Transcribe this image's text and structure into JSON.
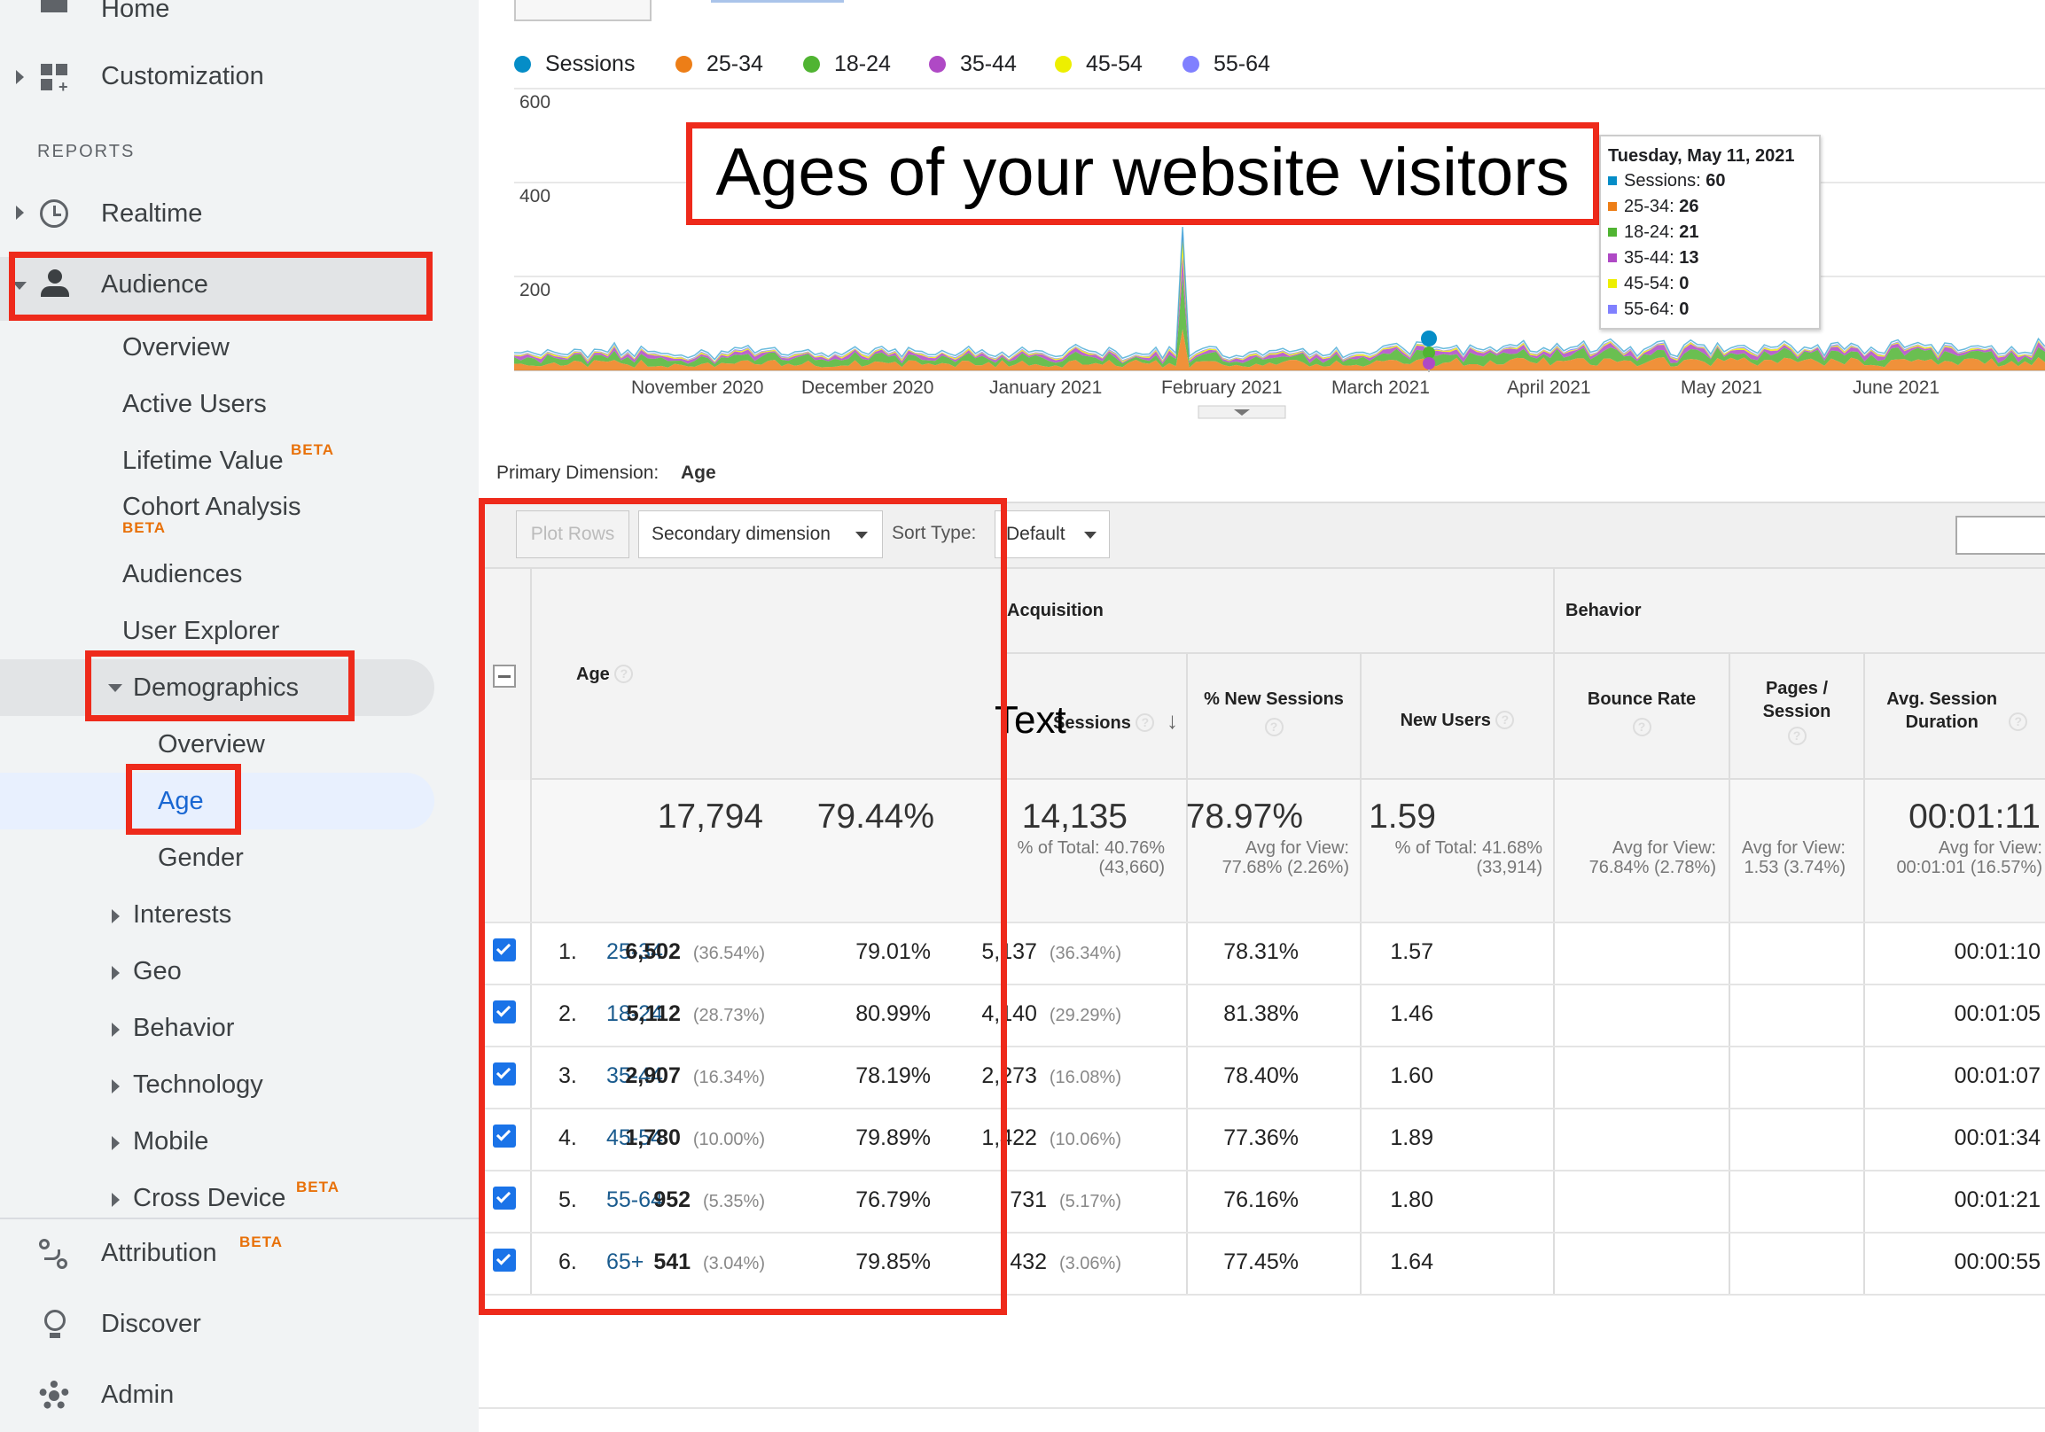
{
  "sidebar": {
    "home_label": "Home",
    "customization_label": "Customization",
    "reports_header": "REPORTS",
    "realtime_label": "Realtime",
    "audience_label": "Audience",
    "audience_items": [
      "Overview",
      "Active Users",
      "Lifetime Value",
      "Cohort Analysis",
      "Audiences",
      "User Explorer"
    ],
    "beta_label": "BETA",
    "demographics_label": "Demographics",
    "demographics_items": [
      "Overview",
      "Age",
      "Gender"
    ],
    "collapsed_items": [
      "Interests",
      "Geo",
      "Behavior",
      "Technology",
      "Mobile",
      "Cross Device"
    ],
    "bottom_items": [
      "Attribution",
      "Discover",
      "Admin"
    ]
  },
  "chart": {
    "legend": [
      "Sessions",
      "25-34",
      "18-24",
      "35-44",
      "45-54",
      "55-64"
    ],
    "legend_colors": [
      "#058dc7",
      "#ed7e17",
      "#50b432",
      "#af49c5",
      "#edef00",
      "#8080ff"
    ],
    "annotation": "Ages of your website visitors",
    "tooltip": {
      "title": "Tuesday, May 11, 2021",
      "rows": [
        {
          "label": "Sessions:",
          "value": "60"
        },
        {
          "label": "25-34:",
          "value": "26"
        },
        {
          "label": "18-24:",
          "value": "21"
        },
        {
          "label": "35-44:",
          "value": "13"
        },
        {
          "label": "45-54:",
          "value": "0"
        },
        {
          "label": "55-64:",
          "value": "0"
        }
      ]
    }
  },
  "chart_data": {
    "type": "area",
    "x_labels": [
      "November 2020",
      "December 2020",
      "January 2021",
      "February 2021",
      "March 2021",
      "April 2021",
      "May 2021",
      "June 2021"
    ],
    "y_ticks": [
      "600",
      "400",
      "200"
    ],
    "ylim": [
      0,
      600
    ]
  },
  "toolbar": {
    "primary_dimension_label": "Primary Dimension:",
    "primary_dimension_value": "Age",
    "plot_rows": "Plot Rows",
    "secondary_dimension": "Secondary dimension",
    "sort_type_label": "Sort Type:",
    "sort_type_value": "Default"
  },
  "table": {
    "group_acquisition": "Acquisition",
    "group_behavior": "Behavior",
    "col_age": "Age",
    "col_sessions": "Sessions",
    "overlay_text": "Text",
    "col_new_sessions": "% New Sessions",
    "col_new_users": "New Users",
    "col_bounce": "Bounce Rate",
    "col_pages": "Pages / Session",
    "col_duration": "Avg. Session Duration",
    "totals": {
      "sessions": "17,794",
      "sessions_sub": "% of Total: 40.76% (43,660)",
      "new_sessions": "79.44%",
      "new_sessions_sub": "Avg for View: 77.68% (2.26%)",
      "new_users": "14,135",
      "new_users_sub": "% of Total: 41.68% (33,914)",
      "bounce": "78.97%",
      "bounce_sub": "Avg for View: 76.84% (2.78%)",
      "pages": "1.59",
      "pages_sub": "Avg for View: 1.53 (3.74%)",
      "duration": "00:01:11",
      "duration_sub": "Avg for View: 00:01:01 (16.57%)"
    },
    "rows": [
      {
        "idx": "1.",
        "age": "25-34",
        "sessions": "6,502",
        "sessions_pct": "(36.54%)",
        "new_sessions": "79.01%",
        "new_users": "5,137",
        "new_users_pct": "(36.34%)",
        "bounce": "78.31%",
        "pages": "1.57",
        "duration": "00:01:10"
      },
      {
        "idx": "2.",
        "age": "18-24",
        "sessions": "5,112",
        "sessions_pct": "(28.73%)",
        "new_sessions": "80.99%",
        "new_users": "4,140",
        "new_users_pct": "(29.29%)",
        "bounce": "81.38%",
        "pages": "1.46",
        "duration": "00:01:05"
      },
      {
        "idx": "3.",
        "age": "35-44",
        "sessions": "2,907",
        "sessions_pct": "(16.34%)",
        "new_sessions": "78.19%",
        "new_users": "2,273",
        "new_users_pct": "(16.08%)",
        "bounce": "78.40%",
        "pages": "1.60",
        "duration": "00:01:07"
      },
      {
        "idx": "4.",
        "age": "45-54",
        "sessions": "1,780",
        "sessions_pct": "(10.00%)",
        "new_sessions": "79.89%",
        "new_users": "1,422",
        "new_users_pct": "(10.06%)",
        "bounce": "77.36%",
        "pages": "1.89",
        "duration": "00:01:34"
      },
      {
        "idx": "5.",
        "age": "55-64",
        "sessions": "952",
        "sessions_pct": "(5.35%)",
        "new_sessions": "76.79%",
        "new_users": "731",
        "new_users_pct": "(5.17%)",
        "bounce": "76.16%",
        "pages": "1.80",
        "duration": "00:01:21"
      },
      {
        "idx": "6.",
        "age": "65+",
        "sessions": "541",
        "sessions_pct": "(3.04%)",
        "new_sessions": "79.85%",
        "new_users": "432",
        "new_users_pct": "(3.06%)",
        "bounce": "77.45%",
        "pages": "1.64",
        "duration": "00:00:55"
      }
    ]
  }
}
